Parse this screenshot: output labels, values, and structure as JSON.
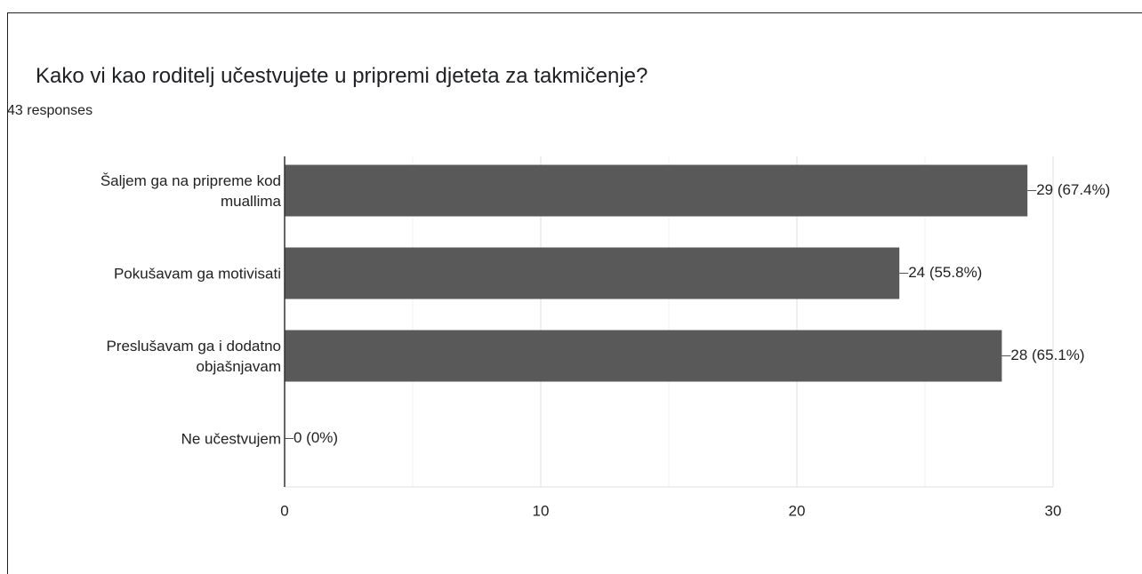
{
  "chart_data": {
    "type": "hbar",
    "title": "Kako vi kao roditelj učestvujete u pripremi djeteta za takmičenje?",
    "subtitle": "43 responses",
    "categories": [
      "Šaljem ga na pripreme kod muallima",
      "Pokušavam ga motivisati",
      "Preslušavam ga i dodatno objašnjavam",
      "Ne učestvujem"
    ],
    "values": [
      29,
      24,
      28,
      0
    ],
    "value_labels": [
      "29 (67.4%)",
      "24 (55.8%)",
      "28 (65.1%)",
      "0 (0%)"
    ],
    "color": "#595959",
    "xlim": [
      0,
      30
    ],
    "xticks": [
      0,
      10,
      20,
      30
    ],
    "minor_xticks": [
      5,
      15,
      25
    ],
    "grid": true
  }
}
